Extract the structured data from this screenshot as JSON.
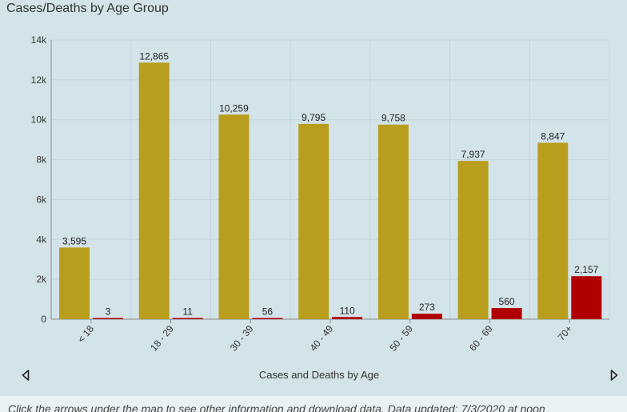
{
  "title": "Cases/Deaths by Age Group",
  "nav": {
    "label": "Cases and Deaths by Age",
    "prev_icon": "triangle-left-icon",
    "next_icon": "triangle-right-icon"
  },
  "footer": {
    "text": "Click the arrows under the map to see other information and download data. Data updated: 7/3/2020 at noon"
  },
  "colors": {
    "cases": "#b89e1c",
    "deaths": "#b10000",
    "grid": "#c4d4db",
    "axis": "#888888"
  },
  "chart_data": {
    "type": "bar",
    "categories": [
      "< 18",
      "18 - 29",
      "30 - 39",
      "40 - 49",
      "50 - 59",
      "60 - 69",
      "70+"
    ],
    "series": [
      {
        "name": "",
        "values": [
          3595,
          12865,
          10259,
          9795,
          9758,
          7937,
          8847
        ],
        "labels": [
          "3,595",
          "12,865",
          "10,259",
          "9,795",
          "9,758",
          "7,937",
          "8,847"
        ]
      },
      {
        "name": "",
        "values": [
          3,
          11,
          56,
          110,
          273,
          560,
          2157
        ],
        "labels": [
          "3",
          "11",
          "56",
          "110",
          "273",
          "560",
          "2,157"
        ]
      }
    ],
    "ylim": [
      0,
      14000
    ],
    "yticks": [
      0,
      2000,
      4000,
      6000,
      8000,
      10000,
      12000,
      14000
    ],
    "ytick_labels": [
      "0",
      "2k",
      "4k",
      "6k",
      "8k",
      "10k",
      "12k",
      "14k"
    ],
    "grid": true,
    "xlabel": "",
    "ylabel": ""
  }
}
